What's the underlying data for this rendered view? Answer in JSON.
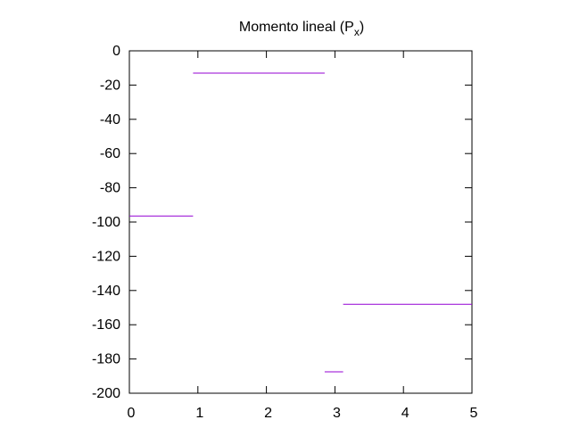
{
  "chart_data": {
    "type": "line",
    "title": "Momento lineal (P",
    "title_subscript": "x",
    "title_close": ")",
    "xlim": [
      0,
      5
    ],
    "ylim": [
      -200,
      0
    ],
    "xticks": [
      0,
      1,
      2,
      3,
      4,
      5
    ],
    "yticks": [
      0,
      -20,
      -40,
      -60,
      -80,
      -100,
      -120,
      -140,
      -160,
      -180,
      -200
    ],
    "grid": false,
    "series": [
      {
        "color": "#9400d3",
        "segments": [
          {
            "x": [
              0,
              0.93
            ],
            "y": [
              -96.5,
              -96.5
            ]
          },
          {
            "x": [
              0.93,
              2.85
            ],
            "y": [
              -13,
              -13
            ]
          },
          {
            "x": [
              2.85,
              3.12
            ],
            "y": [
              -187.5,
              -187.5
            ]
          },
          {
            "x": [
              3.12,
              5
            ],
            "y": [
              -148,
              -148
            ]
          }
        ]
      }
    ]
  }
}
